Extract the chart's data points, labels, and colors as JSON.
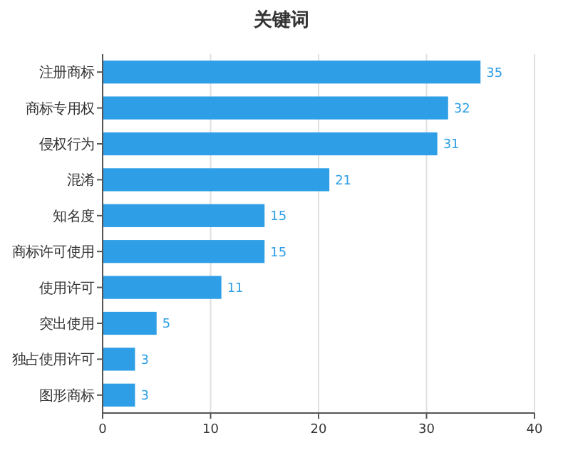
{
  "chart_data": {
    "type": "bar",
    "orientation": "horizontal",
    "title": "关键词",
    "categories": [
      "注册商标",
      "商标专用权",
      "侵权行为",
      "混淆",
      "知名度",
      "商标许可使用",
      "使用许可",
      "突出使用",
      "独占使用许可",
      "图形商标"
    ],
    "values": [
      35,
      32,
      31,
      21,
      15,
      15,
      11,
      5,
      3,
      3
    ],
    "color": "#2e9fe6",
    "xlim": [
      0,
      40
    ],
    "xticks": [
      0,
      10,
      20,
      30,
      40
    ],
    "grid": "x",
    "data_labels": true
  }
}
